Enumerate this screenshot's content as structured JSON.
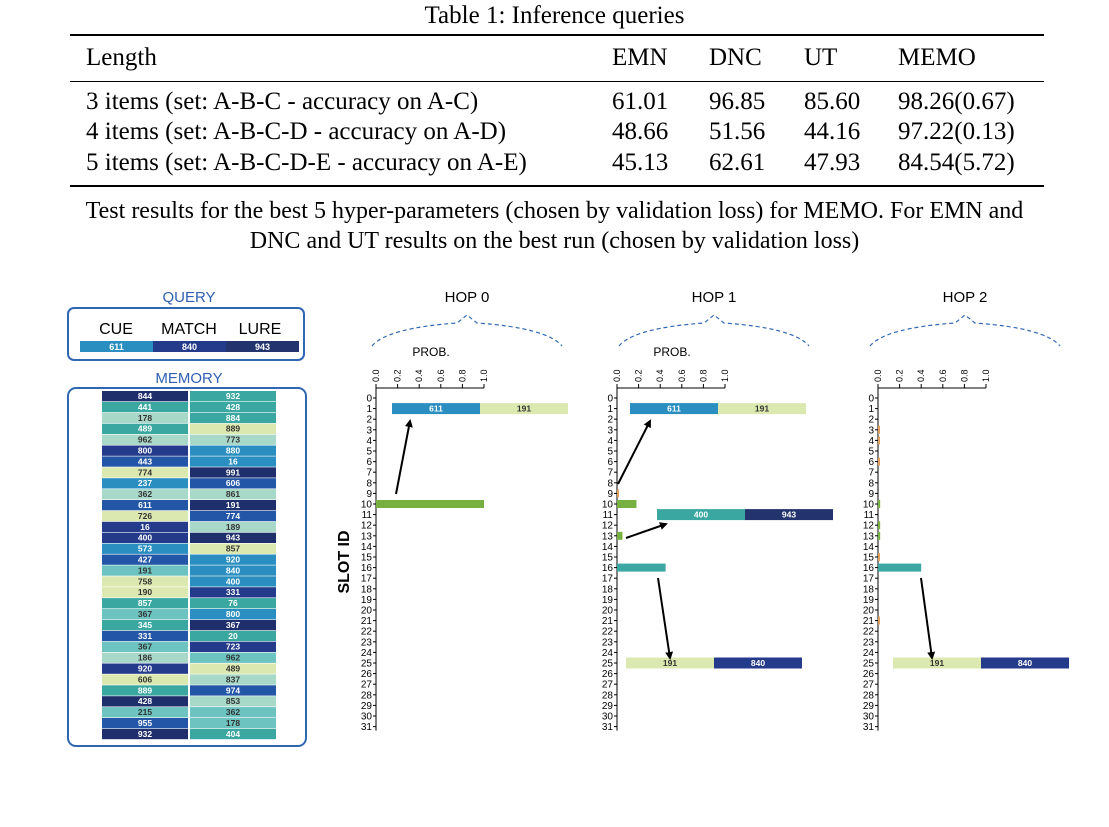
{
  "table": {
    "caption": "Table 1: Inference queries",
    "headers": [
      "Length",
      "EMN",
      "DNC",
      "UT",
      "MEMO"
    ],
    "rows": [
      [
        "3 items (set: A-B-C - accuracy on A-C)",
        "61.01",
        "96.85",
        "85.60",
        "98.26(0.67)"
      ],
      [
        "4 items (set: A-B-C-D - accuracy on A-D)",
        "48.66",
        "51.56",
        "44.16",
        "97.22(0.13)"
      ],
      [
        "5 items (set: A-B-C-D-E - accuracy on A-E)",
        "45.13",
        "62.61",
        "47.93",
        "84.54(5.72)"
      ]
    ],
    "note_line1": "Test results for the best 5 hyper-parameters (chosen by validation loss) for MEMO. For EMN and",
    "note_line2": "DNC and UT results on the best run (chosen by validation loss)"
  },
  "figure": {
    "query": {
      "title": "QUERY",
      "labels": [
        "CUE",
        "MATCH",
        "LURE"
      ],
      "values": [
        "611",
        "840",
        "943"
      ]
    },
    "memory": {
      "title": "MEMORY",
      "rows": [
        [
          "844",
          "932"
        ],
        [
          "441",
          "428"
        ],
        [
          "178",
          "884"
        ],
        [
          "489",
          "889"
        ],
        [
          "962",
          "773"
        ],
        [
          "800",
          "880"
        ],
        [
          "443",
          "16"
        ],
        [
          "774",
          "991"
        ],
        [
          "237",
          "606"
        ],
        [
          "362",
          "861"
        ],
        [
          "611",
          "191"
        ],
        [
          "726",
          "774"
        ],
        [
          "16",
          "189"
        ],
        [
          "400",
          "943"
        ],
        [
          "573",
          "857"
        ],
        [
          "427",
          "920"
        ],
        [
          "191",
          "840"
        ],
        [
          "758",
          "400"
        ],
        [
          "190",
          "331"
        ],
        [
          "857",
          "76"
        ],
        [
          "367",
          "800"
        ],
        [
          "345",
          "367"
        ],
        [
          "331",
          "20"
        ],
        [
          "367",
          "723"
        ],
        [
          "186",
          "962"
        ],
        [
          "920",
          "489"
        ],
        [
          "606",
          "837"
        ],
        [
          "889",
          "974"
        ],
        [
          "428",
          "853"
        ],
        [
          "215",
          "362"
        ],
        [
          "955",
          "178"
        ],
        [
          "932",
          "404"
        ]
      ]
    },
    "slot_axis_label": "SLOT ID",
    "prob_label": "PROB.",
    "prob_ticks": [
      "0.0",
      "0.2",
      "0.4",
      "0.6",
      "0.8",
      "1.0"
    ],
    "slot_ids": [
      "0",
      "1",
      "2",
      "3",
      "4",
      "5",
      "6",
      "7",
      "8",
      "9",
      "10",
      "11",
      "12",
      "13",
      "14",
      "15",
      "16",
      "17",
      "18",
      "19",
      "20",
      "21",
      "22",
      "23",
      "24",
      "25",
      "26",
      "27",
      "28",
      "29",
      "30",
      "31"
    ],
    "colors": {
      "cue": "#2a8fc0",
      "match": "#243a8a",
      "lure": "#22336e",
      "light": "#dbe8b0",
      "teal": "#3aa7a1",
      "green": "#76b041",
      "frame": "#2f67b2",
      "title_blue": "#2f5fb0"
    },
    "hops": [
      {
        "title": "HOP 0",
        "show_prob_label": true,
        "attention": {
          "10": 1.0
        },
        "pairs": [
          {
            "slot": 1,
            "vals": [
              "611",
              "191"
            ],
            "cols": [
              "cue",
              "light"
            ]
          }
        ]
      },
      {
        "title": "HOP 1",
        "show_prob_label": true,
        "attention": {
          "9": 0.01,
          "10": 0.18,
          "13": 0.05,
          "16": 0.45
        },
        "pairs": [
          {
            "slot": 1,
            "vals": [
              "611",
              "191"
            ],
            "cols": [
              "cue",
              "light"
            ]
          },
          {
            "slot": 11,
            "vals": [
              "400",
              "943"
            ],
            "cols": [
              "teal",
              "lure"
            ]
          },
          {
            "slot": 25,
            "vals": [
              "191",
              "840"
            ],
            "cols": [
              "light",
              "match"
            ]
          }
        ]
      },
      {
        "title": "HOP 2",
        "show_prob_label": false,
        "attention": {
          "3": 0.01,
          "4": 0.01,
          "6": 0.01,
          "10": 0.02,
          "12": 0.02,
          "13": 0.02,
          "15": 0.01,
          "16": 0.4,
          "21": 0.01
        },
        "pairs": [
          {
            "slot": 25,
            "vals": [
              "191",
              "840"
            ],
            "cols": [
              "light",
              "match"
            ]
          }
        ]
      }
    ]
  }
}
